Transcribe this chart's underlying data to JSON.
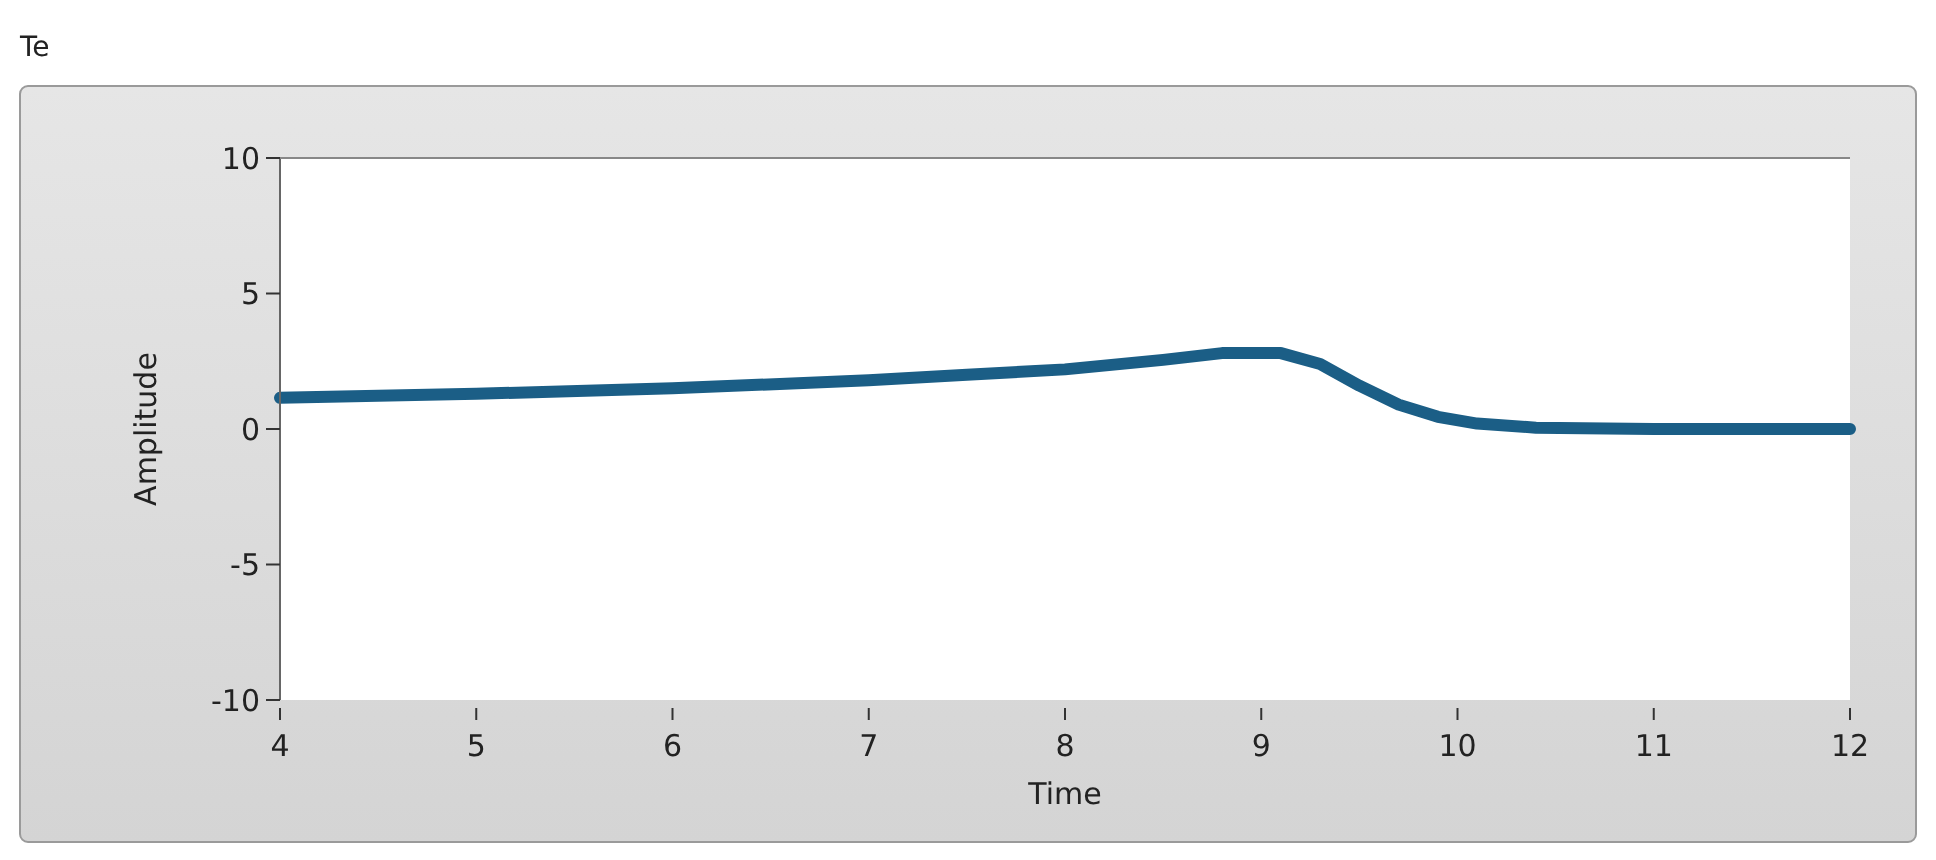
{
  "chart_data": {
    "type": "line",
    "title": "Te",
    "xlabel": "Time",
    "ylabel": "Amplitude",
    "x": [
      4,
      5,
      6,
      7,
      7.5,
      8,
      8.5,
      8.8,
      9.1,
      9.3,
      9.5,
      9.7,
      9.9,
      10.1,
      10.4,
      11,
      12
    ],
    "series": [
      {
        "color": "#1b5e86",
        "values": [
          1.15,
          1.3,
          1.5,
          1.8,
          2.0,
          2.2,
          2.55,
          2.8,
          2.8,
          2.4,
          1.6,
          0.9,
          0.45,
          0.2,
          0.05,
          0,
          0
        ]
      }
    ],
    "xlim": [
      4,
      12
    ],
    "xticks": [
      4,
      5,
      6,
      7,
      8,
      9,
      10,
      11,
      12
    ],
    "ylim": [
      -10,
      10
    ],
    "yticks": [
      -10,
      -5,
      0,
      5,
      10
    ],
    "grid": false,
    "marker": "none",
    "line_style": "solid"
  }
}
